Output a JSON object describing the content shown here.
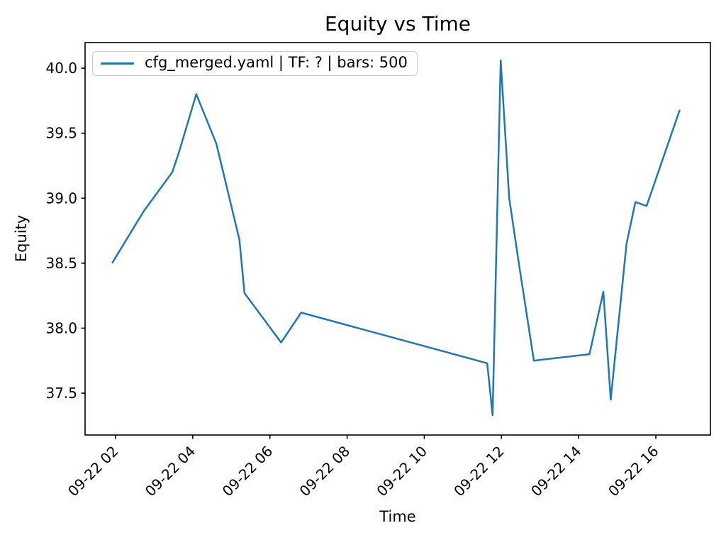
{
  "chart_data": {
    "type": "line",
    "title": "Equity vs Time",
    "xlabel": "Time",
    "ylabel": "Equity",
    "grid": false,
    "legend_position": "upper left",
    "legend": [
      {
        "label": "cfg_merged.yaml | TF: ? | bars: 500",
        "color": "#1f77b4"
      }
    ],
    "line_color": "#1f77b4",
    "xlim_hours": [
      1.21,
      17.414
    ],
    "ylim": [
      37.178,
      40.197
    ],
    "xticks": [
      {
        "hour": 2,
        "label": "09-22 02"
      },
      {
        "hour": 4,
        "label": "09-22 04"
      },
      {
        "hour": 6,
        "label": "09-22 06"
      },
      {
        "hour": 8,
        "label": "09-22 08"
      },
      {
        "hour": 10,
        "label": "09-22 10"
      },
      {
        "hour": 12,
        "label": "09-22 12"
      },
      {
        "hour": 14,
        "label": "09-22 14"
      },
      {
        "hour": 16,
        "label": "09-22 16"
      }
    ],
    "yticks": [
      37.5,
      38.0,
      38.5,
      39.0,
      39.5,
      40.0
    ],
    "series": [
      {
        "name": "cfg_merged.yaml | TF: ? | bars: 500",
        "color": "#1f77b4",
        "points": [
          {
            "time": "09-22 01:55",
            "t_hours": 1.91,
            "equity": 38.5
          },
          {
            "time": "09-22 02:44",
            "t_hours": 2.73,
            "equity": 38.9
          },
          {
            "time": "09-22 03:28",
            "t_hours": 3.47,
            "equity": 39.2
          },
          {
            "time": "09-22 03:39",
            "t_hours": 3.65,
            "equity": 39.36
          },
          {
            "time": "09-22 04:05",
            "t_hours": 4.09,
            "equity": 39.8
          },
          {
            "time": "09-22 04:37",
            "t_hours": 4.61,
            "equity": 39.42
          },
          {
            "time": "09-22 05:13",
            "t_hours": 5.21,
            "equity": 38.68
          },
          {
            "time": "09-22 05:20",
            "t_hours": 5.34,
            "equity": 38.27
          },
          {
            "time": "09-22 06:17",
            "t_hours": 6.29,
            "equity": 37.89
          },
          {
            "time": "09-22 06:49",
            "t_hours": 6.81,
            "equity": 38.12
          },
          {
            "time": "09-22 11:38",
            "t_hours": 11.63,
            "equity": 37.73
          },
          {
            "time": "09-22 11:46",
            "t_hours": 11.77,
            "equity": 37.33
          },
          {
            "time": "09-22 11:59",
            "t_hours": 11.98,
            "equity": 40.06
          },
          {
            "time": "09-22 12:12",
            "t_hours": 12.2,
            "equity": 39.0
          },
          {
            "time": "09-22 12:28",
            "t_hours": 12.47,
            "equity": 38.46
          },
          {
            "time": "09-22 12:50",
            "t_hours": 12.84,
            "equity": 37.75
          },
          {
            "time": "09-22 14:17",
            "t_hours": 14.28,
            "equity": 37.8
          },
          {
            "time": "09-22 14:38",
            "t_hours": 14.64,
            "equity": 38.28
          },
          {
            "time": "09-22 14:50",
            "t_hours": 14.83,
            "equity": 37.45
          },
          {
            "time": "09-22 15:14",
            "t_hours": 15.24,
            "equity": 38.65
          },
          {
            "time": "09-22 15:28",
            "t_hours": 15.47,
            "equity": 38.97
          },
          {
            "time": "09-22 15:46",
            "t_hours": 15.76,
            "equity": 38.94
          },
          {
            "time": "09-22 16:37",
            "t_hours": 16.62,
            "equity": 39.68
          }
        ]
      }
    ]
  }
}
